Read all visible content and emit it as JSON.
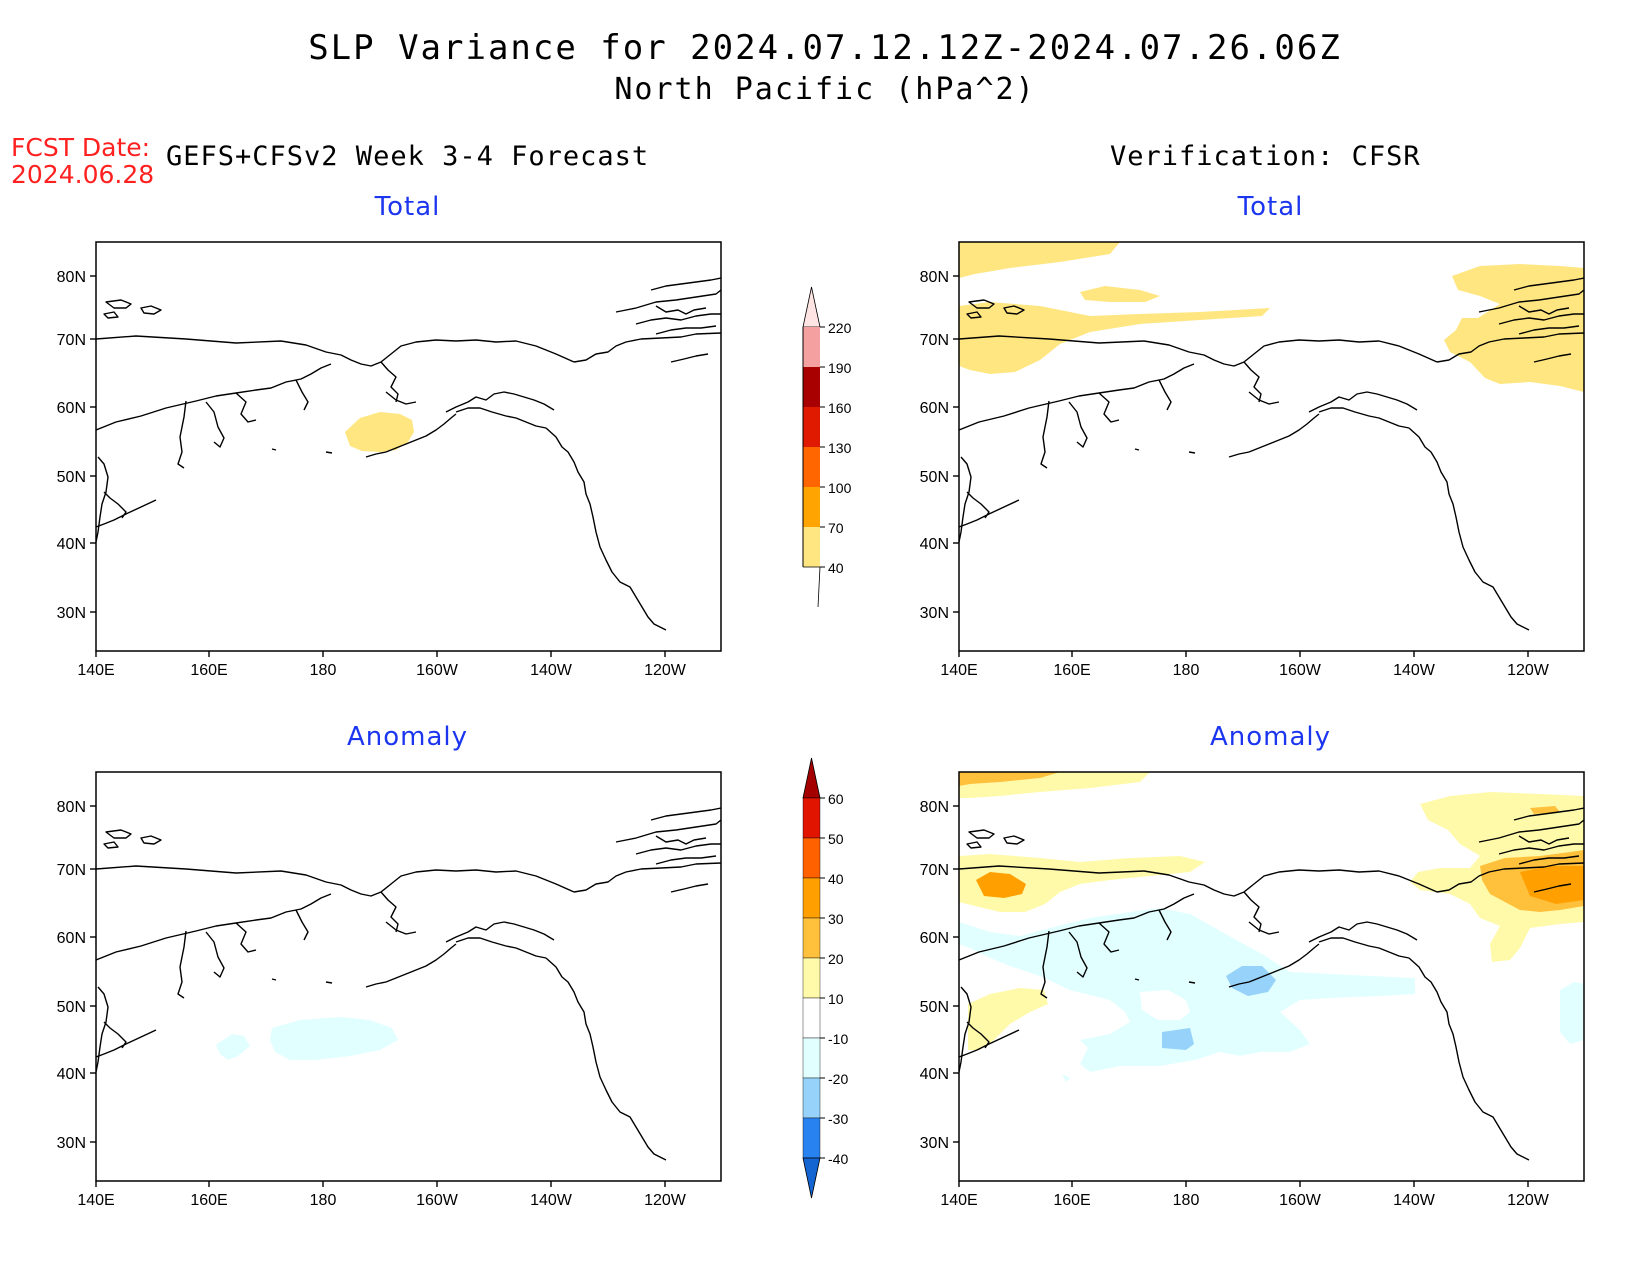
{
  "title_line1": "SLP Variance for 2024.07.12.12Z-2024.07.26.06Z",
  "title_line2": "North Pacific (hPa^2)",
  "fcst_label": "FCST Date:",
  "fcst_date": "2024.06.28",
  "left_header": "GEFS+CFSv2 Week 3-4 Forecast",
  "right_header": "Verification: CFSR",
  "panels": {
    "forecast_total": "Total",
    "verification_total": "Total",
    "forecast_anomaly": "Anomaly",
    "verification_anomaly": "Anomaly"
  },
  "lat_labels": [
    "80N",
    "70N",
    "60N",
    "50N",
    "40N",
    "30N"
  ],
  "lon_labels": [
    "140E",
    "160E",
    "180",
    "160W",
    "140W",
    "120W"
  ],
  "total_colorbar": {
    "labels": [
      "40",
      "70",
      "100",
      "130",
      "160",
      "190",
      "220"
    ],
    "colors": [
      "#ffe680",
      "#ffa400",
      "#ff6600",
      "#e01a00",
      "#a80000",
      "#f4a0a0",
      "#ffe4e4"
    ]
  },
  "anomaly_colorbar": {
    "labels": [
      "-40",
      "-30",
      "-20",
      "-10",
      "10",
      "20",
      "30",
      "40",
      "50",
      "60"
    ],
    "colors": [
      "#1464d2",
      "#2882f0",
      "#96d2fa",
      "#e1ffff",
      "#ffffff",
      "#fffaaa",
      "#ffc03c",
      "#ffa000",
      "#ff6000",
      "#e11400",
      "#a50000"
    ]
  },
  "colors": {
    "yellow": "#ffe680",
    "pale_yellow": "#fffaaa",
    "light_orange": "#ffc03c",
    "orange": "#ffa000",
    "pale_cyan": "#e1ffff",
    "light_blue": "#96d2fa",
    "blue": "#78b4f0",
    "title_blue": "#1c36f0",
    "fcst_red": "#ff2020"
  }
}
